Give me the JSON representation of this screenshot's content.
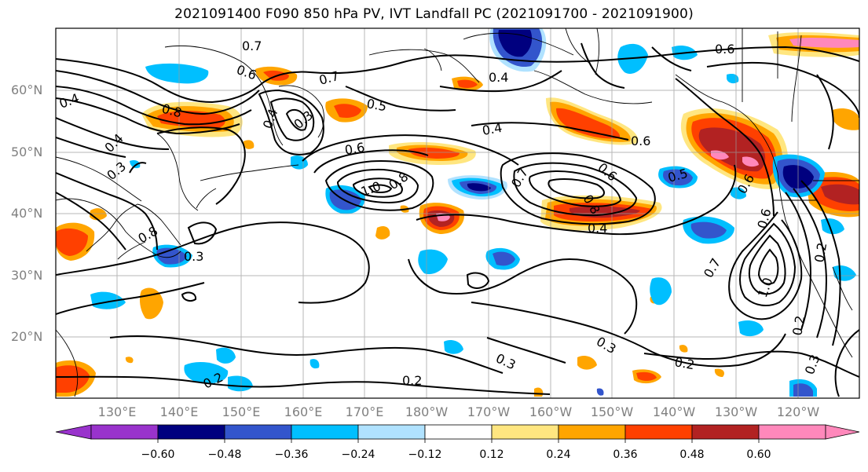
{
  "title": "2021091400 F090 850 hPa PV, IVT Landfall PC (2021091700 - 2021091900)",
  "lat_labels": [
    "60°N",
    "50°N",
    "40°N",
    "30°N",
    "20°N"
  ],
  "lon_labels": [
    "130°E",
    "140°E",
    "150°E",
    "160°E",
    "170°E",
    "180°W",
    "170°W",
    "160°W",
    "150°W",
    "140°W",
    "130°W",
    "120°W"
  ],
  "colorbar": {
    "ticks": [
      "−0.60",
      "−0.48",
      "−0.36",
      "−0.24",
      "−0.12",
      "0.12",
      "0.24",
      "0.36",
      "0.48",
      "0.60"
    ],
    "colors": [
      "#9933cc",
      "#00007f",
      "#3355cc",
      "#00bfff",
      "#b0e2ff",
      "#ffffff",
      "#ffe680",
      "#ffa500",
      "#ff4000",
      "#b22222",
      "#ff88bb"
    ]
  },
  "contour_labels": [
    {
      "text": "0.7"
    },
    {
      "text": "0.6"
    },
    {
      "text": "0.4"
    },
    {
      "text": "0.8"
    },
    {
      "text": "0.4"
    },
    {
      "text": "0.3"
    },
    {
      "text": "0.3"
    },
    {
      "text": "0.7"
    },
    {
      "text": "0.5"
    },
    {
      "text": "0.4"
    },
    {
      "text": "0.6"
    },
    {
      "text": "1.0"
    },
    {
      "text": "0.8"
    },
    {
      "text": "0.7"
    },
    {
      "text": "0.6"
    },
    {
      "text": "0.8"
    },
    {
      "text": "0.4"
    },
    {
      "text": "0.6"
    },
    {
      "text": "0.4"
    },
    {
      "text": "0.6"
    },
    {
      "text": "0.5"
    },
    {
      "text": "0.6"
    },
    {
      "text": "0.4"
    },
    {
      "text": "0.3"
    },
    {
      "text": "0.6"
    },
    {
      "text": "0.7"
    },
    {
      "text": "1.0"
    },
    {
      "text": "0.2"
    },
    {
      "text": "0.3"
    },
    {
      "text": "0.3"
    },
    {
      "text": "0.2"
    },
    {
      "text": "0.2"
    },
    {
      "text": "0.2"
    },
    {
      "text": "0.2"
    },
    {
      "text": "0.3"
    },
    {
      "text": "0.8"
    }
  ]
}
